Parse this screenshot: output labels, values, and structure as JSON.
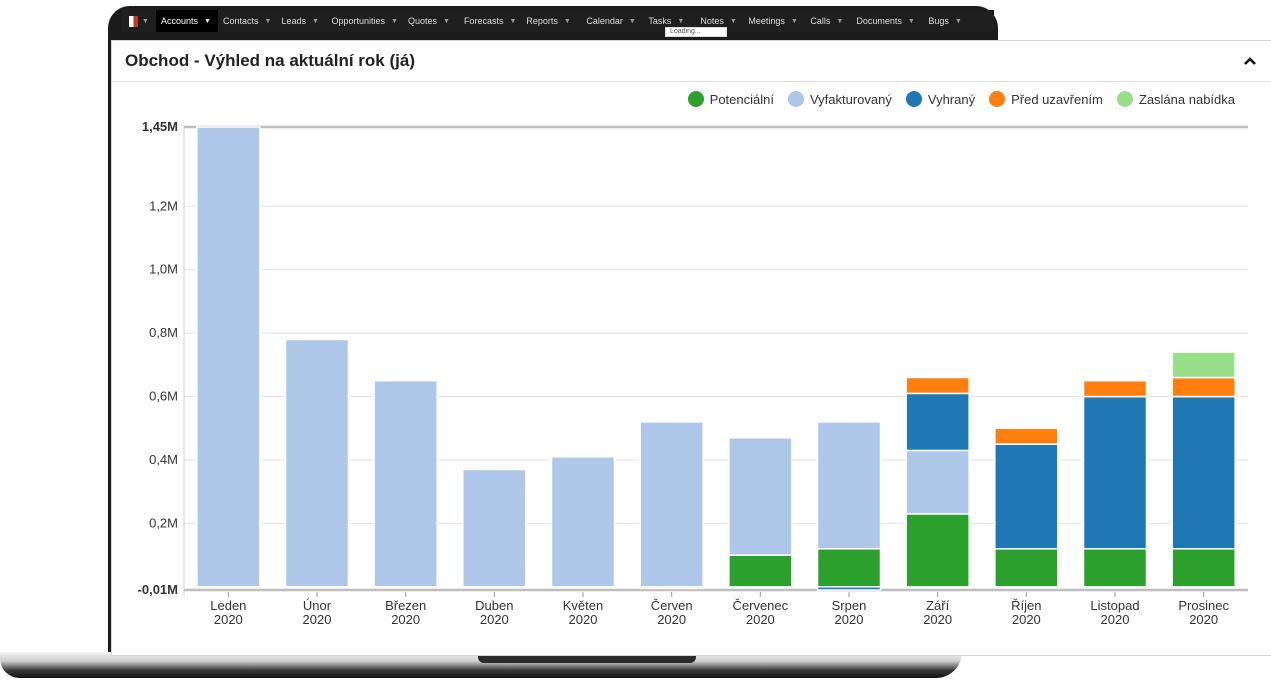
{
  "nav": {
    "items": [
      {
        "label": "Accounts",
        "active": true
      },
      {
        "label": "Contacts"
      },
      {
        "label": "Leads"
      },
      {
        "label": "Opportunities"
      },
      {
        "label": "Quotes"
      },
      {
        "label": "Forecasts"
      },
      {
        "label": "Reports"
      },
      {
        "label": "Calendar"
      },
      {
        "label": "Tasks"
      },
      {
        "label": "Notes"
      },
      {
        "label": "Meetings"
      },
      {
        "label": "Calls"
      },
      {
        "label": "Documents"
      },
      {
        "label": "Bugs"
      }
    ],
    "dropdown_stub": "Loading..."
  },
  "dashlet": {
    "title": "Obchod - Výhled na aktuální rok (já)",
    "collapse_icon": "chevron-up-icon"
  },
  "chart_data": {
    "type": "bar",
    "stacked": true,
    "categories": [
      "Leden 2020",
      "Únor 2020",
      "Březen 2020",
      "Duben 2020",
      "Květen 2020",
      "Červen 2020",
      "Červenec 2020",
      "Srpen 2020",
      "Září 2020",
      "Říjen 2020",
      "Listopad 2020",
      "Prosinec 2020"
    ],
    "series": [
      {
        "name": "Potenciální",
        "color": "#2ca02c",
        "values": [
          0,
          0,
          0,
          0,
          0,
          0,
          0.1,
          0.12,
          0.23,
          0.12,
          0.12,
          0.12
        ]
      },
      {
        "name": "Vyfakturovaný",
        "color": "#aec7e8",
        "values": [
          1.45,
          0.78,
          0.65,
          0.37,
          0.41,
          0.52,
          0.37,
          0.4,
          0.2,
          0,
          0,
          0
        ]
      },
      {
        "name": "Vyhraný",
        "color": "#1f77b4",
        "values": [
          0,
          0,
          0,
          0,
          0,
          -0.005,
          0,
          -0.01,
          0.18,
          0.33,
          0.48,
          0.48
        ]
      },
      {
        "name": "Před uzavřením",
        "color": "#ff7f0e",
        "values": [
          0,
          0,
          0,
          0,
          0,
          0,
          0,
          0,
          0.05,
          0.05,
          0.05,
          0.06
        ]
      },
      {
        "name": "Zaslána nabídka",
        "color": "#98df8a",
        "values": [
          0,
          0,
          0,
          0,
          0,
          0,
          0,
          0,
          0,
          0,
          0,
          0.08
        ]
      }
    ],
    "yticks": [
      {
        "value": 1.45,
        "label": "1,45M",
        "bold": true
      },
      {
        "value": 1.2,
        "label": "1,2M"
      },
      {
        "value": 1.0,
        "label": "1,0M"
      },
      {
        "value": 0.8,
        "label": "0,8M"
      },
      {
        "value": 0.6,
        "label": "0,6M"
      },
      {
        "value": 0.4,
        "label": "0,4M"
      },
      {
        "value": 0.2,
        "label": "0,2M"
      },
      {
        "value": -0.01,
        "label": "-0,01M",
        "bold": true
      }
    ],
    "ylim": [
      -0.01,
      1.45
    ],
    "xlabel": "",
    "ylabel": "",
    "grid": true,
    "legend_position": "top-right"
  }
}
